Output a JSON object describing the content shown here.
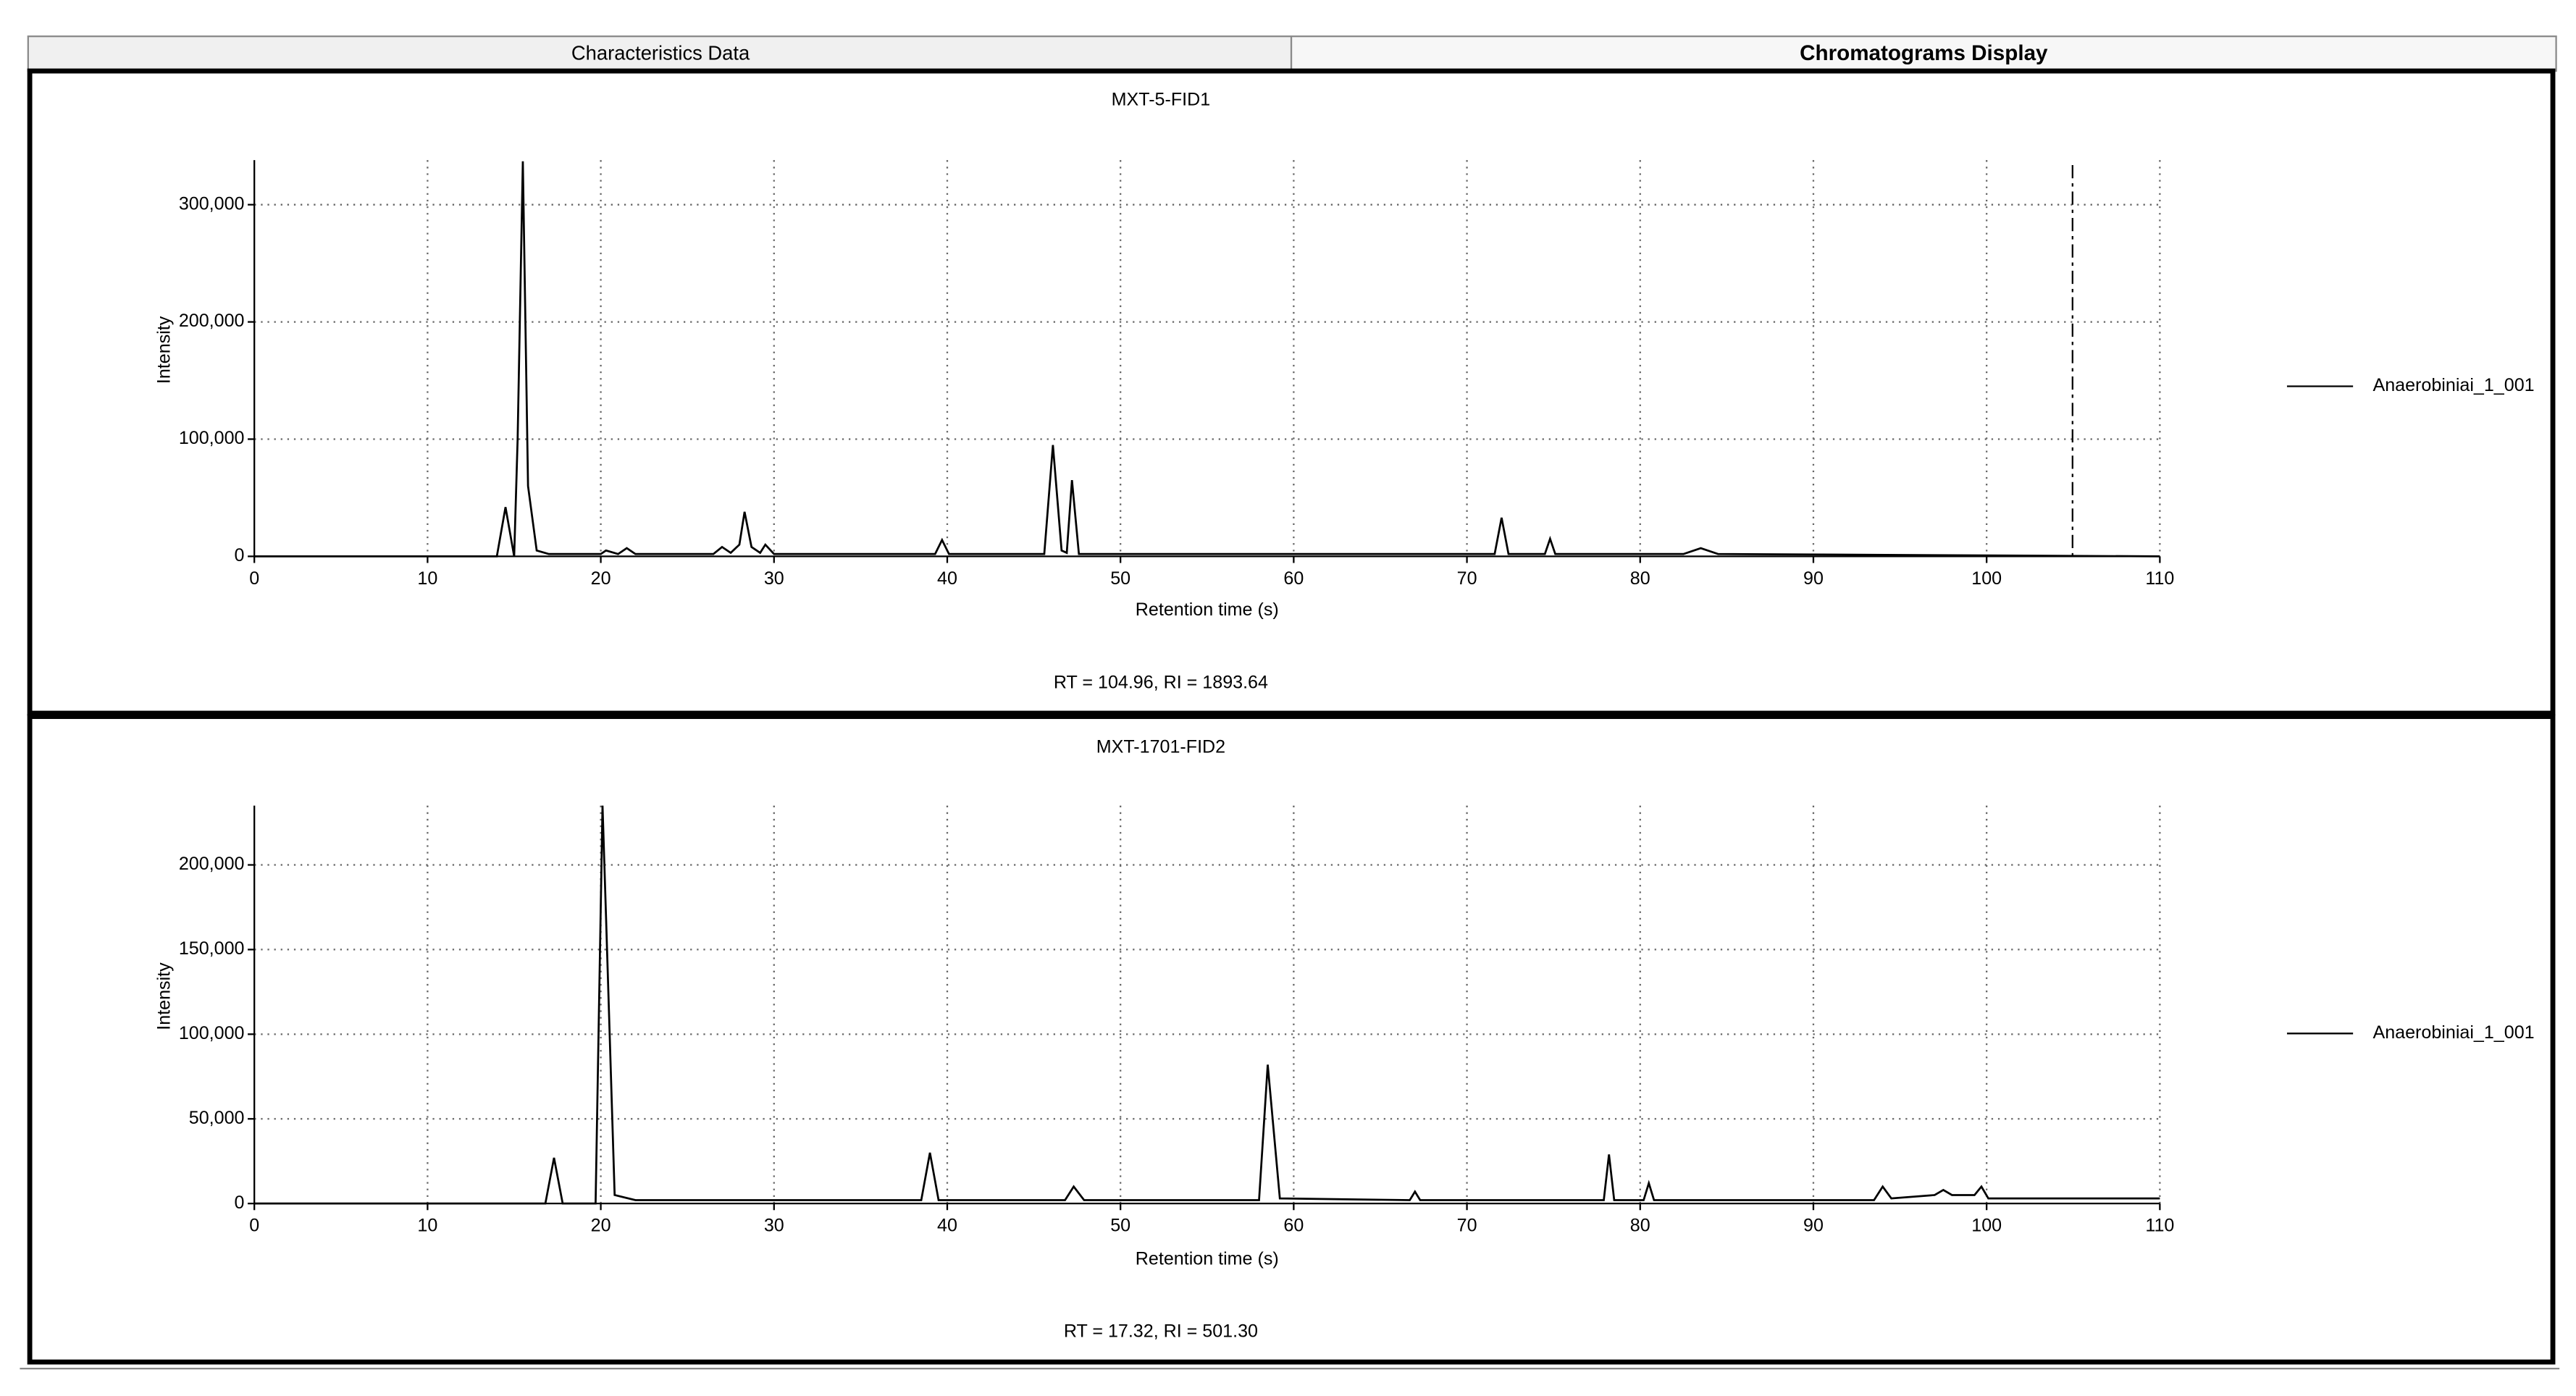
{
  "tabs": [
    "Characteristics Data",
    "Chromatograms Display"
  ],
  "chart_data": [
    {
      "type": "line",
      "title": "MXT-5-FID1",
      "x_label": "Retention time  (s)",
      "y_label": "Intensity",
      "annotation": "RT = 104.96, RI = 1893.64",
      "x": [
        0,
        14,
        14.5,
        15,
        15.2,
        15.5,
        15.8,
        16.3,
        17,
        20,
        20.3,
        21,
        21.5,
        22,
        26.5,
        27,
        27.5,
        28,
        28.3,
        28.7,
        29.2,
        29.5,
        30,
        39.3,
        39.7,
        40.1,
        45.6,
        46.1,
        46.6,
        46.9,
        47.2,
        47.6,
        71.6,
        72,
        72.4,
        74.5,
        74.8,
        75.1,
        82.5,
        83.5,
        84.5,
        110
      ],
      "series": [
        {
          "name": "Anaerobiniai_1_001",
          "color": "#000000",
          "values": [
            0,
            0,
            42000,
            0,
            100000,
            337000,
            60000,
            5000,
            2000,
            2000,
            5000,
            2000,
            7000,
            2000,
            2000,
            8000,
            3000,
            10000,
            38000,
            8000,
            3000,
            10000,
            2000,
            2000,
            14000,
            2000,
            2000,
            95000,
            5000,
            3000,
            65000,
            2000,
            2000,
            33000,
            2000,
            2000,
            15000,
            2000,
            2000,
            7000,
            2000,
            0
          ]
        }
      ],
      "xlim": [
        0,
        110
      ],
      "xticks": [
        0,
        10,
        20,
        30,
        40,
        50,
        60,
        70,
        80,
        90,
        100,
        110
      ],
      "ylim": [
        0,
        338000
      ],
      "yticks": [
        0,
        {
          "value": 100000,
          "label": "100,000"
        },
        {
          "value": 200000,
          "label": "200,000"
        },
        {
          "value": 300000,
          "label": "300,000"
        }
      ],
      "grid": true,
      "legend": "right",
      "cursor_x": 104.96
    },
    {
      "type": "line",
      "title": "MXT-1701-FID2",
      "x_label": "Retention time  (s)",
      "y_label": "Intensity",
      "annotation": "RT = 17.32, RI = 501.30",
      "x": [
        0,
        16.8,
        17.3,
        17.8,
        19.7,
        20.1,
        20.3,
        20.8,
        22,
        38.5,
        39,
        39.5,
        46.8,
        47.3,
        47.9,
        58,
        58.5,
        59.2,
        66.7,
        67,
        67.3,
        77.9,
        78.2,
        78.5,
        80.2,
        80.5,
        80.8,
        93.5,
        94,
        94.5,
        97,
        97.5,
        98,
        99.3,
        99.7,
        100.1,
        110
      ],
      "series": [
        {
          "name": "Anaerobiniai_1_001",
          "color": "#000000",
          "values": [
            0,
            0,
            27000,
            0,
            0,
            235000,
            170000,
            5000,
            2000,
            2000,
            30000,
            2000,
            2000,
            10000,
            2000,
            2000,
            82000,
            3000,
            2000,
            7000,
            2000,
            2000,
            29000,
            2000,
            2000,
            12000,
            2000,
            2000,
            10000,
            3000,
            5000,
            8000,
            5000,
            5000,
            10000,
            3000,
            3000
          ]
        }
      ],
      "xlim": [
        0,
        110
      ],
      "xticks": [
        0,
        10,
        20,
        30,
        40,
        50,
        60,
        70,
        80,
        90,
        100,
        110
      ],
      "ylim": [
        0,
        235000
      ],
      "yticks": [
        0,
        {
          "value": 50000,
          "label": "50,000"
        },
        {
          "value": 100000,
          "label": "100,000"
        },
        {
          "value": 150000,
          "label": "150,000"
        },
        {
          "value": 200000,
          "label": "200,000"
        }
      ],
      "grid": true,
      "legend": "right"
    }
  ]
}
